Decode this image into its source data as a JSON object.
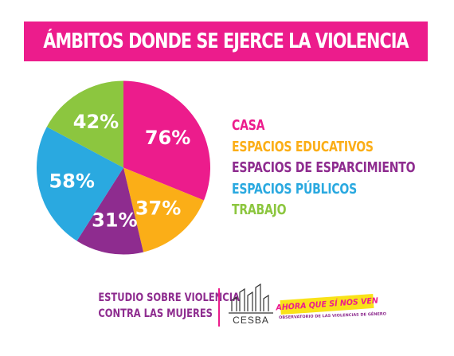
{
  "chart_data": {
    "type": "pie",
    "title": "ÁMBITOS DONDE SE EJERCE LA VIOLENCIA",
    "slices": [
      {
        "name": "CASA",
        "value": 76,
        "label": "76%",
        "color": "#ec1c8c"
      },
      {
        "name": "ESPACIOS EDUCATIVOS",
        "value": 37,
        "label": "37%",
        "color": "#fbae17"
      },
      {
        "name": "ESPACIOS DE ESPARCIMIENTO",
        "value": 31,
        "label": "31%",
        "color": "#8e2c8f"
      },
      {
        "name": "ESPACIOS PÚBLICOS",
        "value": 58,
        "label": "58%",
        "color": "#2aa9e0"
      },
      {
        "name": "TRABAJO",
        "value": 42,
        "label": "42%",
        "color": "#8cc63f"
      }
    ],
    "legend_position": "right"
  },
  "footer": {
    "study_line1": "ESTUDIO SOBRE VIOLENCIA",
    "study_line2": "CONTRA LAS MUJERES",
    "cesba": "CESBA",
    "ahora": "AHORA QUE SÍ NOS VEN",
    "observatorio": "OBSERVATORIO DE LAS VIOLENCIAS DE GÉNERO"
  }
}
